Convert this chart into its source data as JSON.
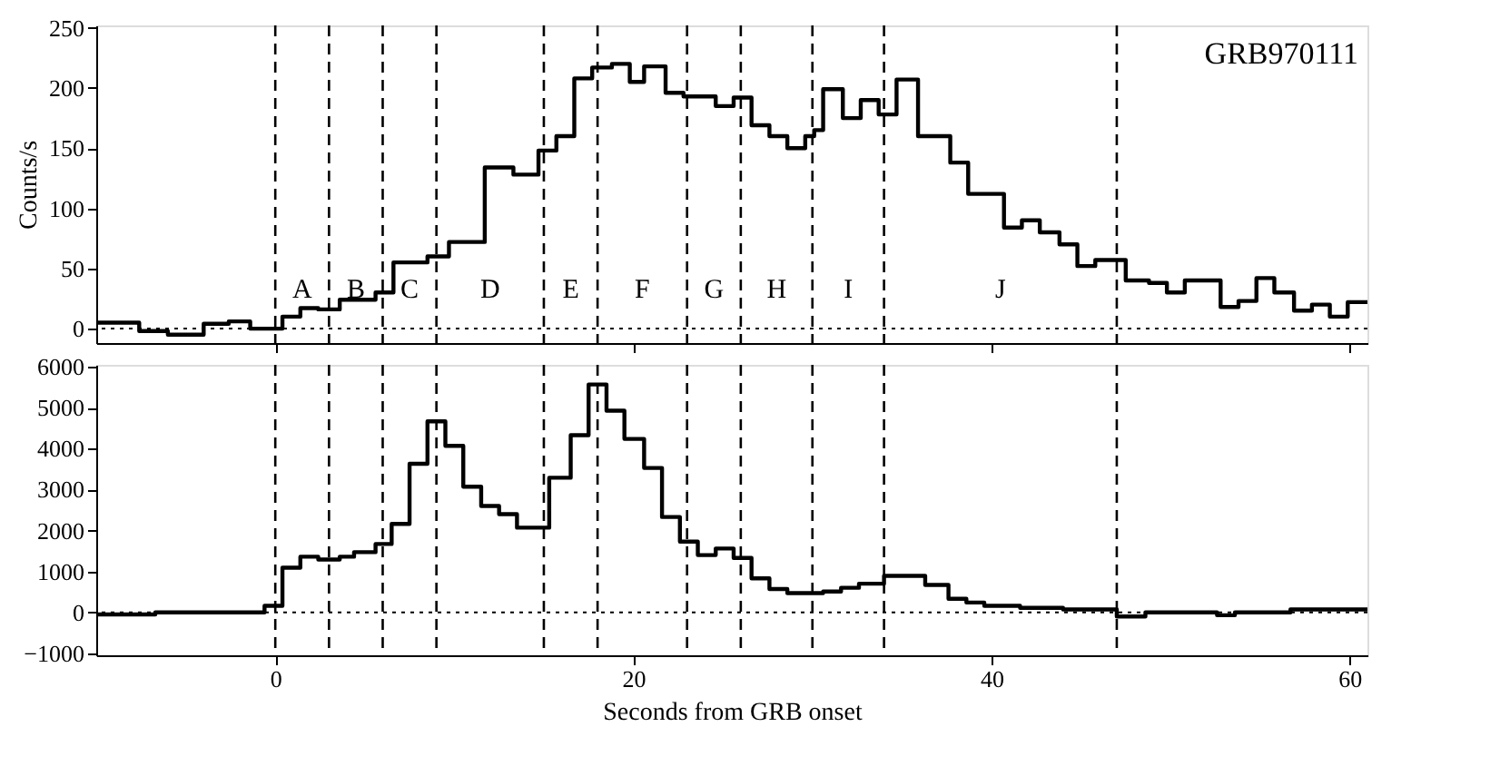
{
  "chart_data": [
    {
      "type": "step",
      "ylabel": "Counts/s",
      "xlim": [
        -10,
        61
      ],
      "xticks": [
        0,
        20,
        40,
        60
      ],
      "ylim": [
        -12,
        252
      ],
      "yticks": [
        0,
        50,
        100,
        150,
        200,
        250
      ],
      "tick_labels": "y",
      "grid": false,
      "line_style": "solid",
      "marker": "none",
      "x": [
        -10,
        -7.6,
        -6,
        -4,
        -2.6,
        -1.4,
        0.4,
        1.4,
        2.4,
        3.6,
        5.6,
        6.6,
        8.5,
        9.7,
        11.7,
        13.3,
        14.7,
        15.7,
        16.7,
        17.7,
        18.8,
        19.8,
        20.6,
        21.8,
        22.8,
        24.6,
        25.6,
        26.6,
        27.6,
        28.6,
        29.6,
        30.1,
        30.6,
        31.7,
        32.7,
        33.7,
        34.7,
        35.9,
        37.7,
        38.7,
        40.7,
        41.7,
        42.7,
        43.8,
        44.8,
        45.8,
        47.5,
        48.8,
        49.8,
        50.8,
        52.8,
        53.8,
        54.8,
        55.8,
        56.9,
        57.9,
        58.9,
        59.9,
        61
      ],
      "series": [
        {
          "color": "#000000",
          "values": [
            5,
            -2,
            -5,
            4,
            6,
            0,
            10,
            17,
            16,
            24,
            30,
            55,
            60,
            72,
            134,
            128,
            148,
            160,
            208,
            217,
            220,
            205,
            218,
            196,
            193,
            185,
            192,
            169,
            160,
            150,
            160,
            165,
            199,
            175,
            190,
            178,
            207,
            160,
            138,
            112,
            84,
            90,
            80,
            70,
            52,
            57,
            40,
            38,
            30,
            40,
            18,
            23,
            42,
            30,
            15,
            20,
            10,
            22,
            22
          ]
        }
      ],
      "ref_lines": [
        {
          "axis": "x",
          "value": 0,
          "line_style": "dashed"
        },
        {
          "axis": "x",
          "value": 3,
          "line_style": "dashed"
        },
        {
          "axis": "x",
          "value": 6,
          "line_style": "dashed"
        },
        {
          "axis": "x",
          "value": 9,
          "line_style": "dashed"
        },
        {
          "axis": "x",
          "value": 15,
          "line_style": "dashed"
        },
        {
          "axis": "x",
          "value": 18,
          "line_style": "dashed"
        },
        {
          "axis": "x",
          "value": 23,
          "line_style": "dashed"
        },
        {
          "axis": "x",
          "value": 26,
          "line_style": "dashed"
        },
        {
          "axis": "x",
          "value": 30,
          "line_style": "dashed"
        },
        {
          "axis": "x",
          "value": 34,
          "line_style": "dashed"
        },
        {
          "axis": "x",
          "value": 47,
          "line_style": "dashed"
        },
        {
          "axis": "y",
          "value": 0,
          "line_style": "dotted"
        }
      ],
      "annotations": [
        "A",
        "B",
        "C",
        "D",
        "E",
        "F",
        "G",
        "H",
        "I",
        "J",
        "GRB970111"
      ]
    },
    {
      "type": "step",
      "xlabel": "Seconds from GRB onset",
      "xlim": [
        -10,
        61
      ],
      "xticks": [
        0,
        20,
        40,
        60
      ],
      "ylim": [
        -1050,
        6050
      ],
      "yticks": [
        -1000,
        0,
        1000,
        2000,
        3000,
        4000,
        5000,
        6000
      ],
      "grid": false,
      "line_style": "solid",
      "marker": "none",
      "x": [
        -10,
        -6.7,
        -0.6,
        0.4,
        1.4,
        2.4,
        3.6,
        4.4,
        5.6,
        6.5,
        7.5,
        8.5,
        9.5,
        10.5,
        11.5,
        12.5,
        13.5,
        15.3,
        16.5,
        17.5,
        18.5,
        19.5,
        20.6,
        21.6,
        22.6,
        23.6,
        24.6,
        25.6,
        26.6,
        27.6,
        28.6,
        30.6,
        31.6,
        32.6,
        34,
        36.3,
        37.6,
        38.6,
        39.6,
        41.6,
        44,
        47,
        48.6,
        52.6,
        53.6,
        56.7,
        59.7,
        61
      ],
      "series": [
        {
          "color": "#000000",
          "values": [
            -50,
            0,
            160,
            1090,
            1360,
            1290,
            1360,
            1470,
            1670,
            2160,
            3630,
            4670,
            4070,
            3070,
            2600,
            2400,
            2070,
            3290,
            4330,
            5570,
            4930,
            4240,
            3530,
            2330,
            1730,
            1400,
            1560,
            1330,
            830,
            570,
            470,
            510,
            600,
            700,
            890,
            670,
            330,
            240,
            160,
            110,
            70,
            -100,
            0,
            -70,
            0,
            70,
            70,
            70
          ]
        }
      ],
      "ref_lines": [
        {
          "axis": "x",
          "value": 0,
          "line_style": "dashed"
        },
        {
          "axis": "x",
          "value": 3,
          "line_style": "dashed"
        },
        {
          "axis": "x",
          "value": 6,
          "line_style": "dashed"
        },
        {
          "axis": "x",
          "value": 9,
          "line_style": "dashed"
        },
        {
          "axis": "x",
          "value": 15,
          "line_style": "dashed"
        },
        {
          "axis": "x",
          "value": 18,
          "line_style": "dashed"
        },
        {
          "axis": "x",
          "value": 23,
          "line_style": "dashed"
        },
        {
          "axis": "x",
          "value": 26,
          "line_style": "dashed"
        },
        {
          "axis": "x",
          "value": 30,
          "line_style": "dashed"
        },
        {
          "axis": "x",
          "value": 34,
          "line_style": "dashed"
        },
        {
          "axis": "x",
          "value": 47,
          "line_style": "dashed"
        },
        {
          "axis": "y",
          "value": 0,
          "line_style": "dotted"
        }
      ]
    }
  ]
}
